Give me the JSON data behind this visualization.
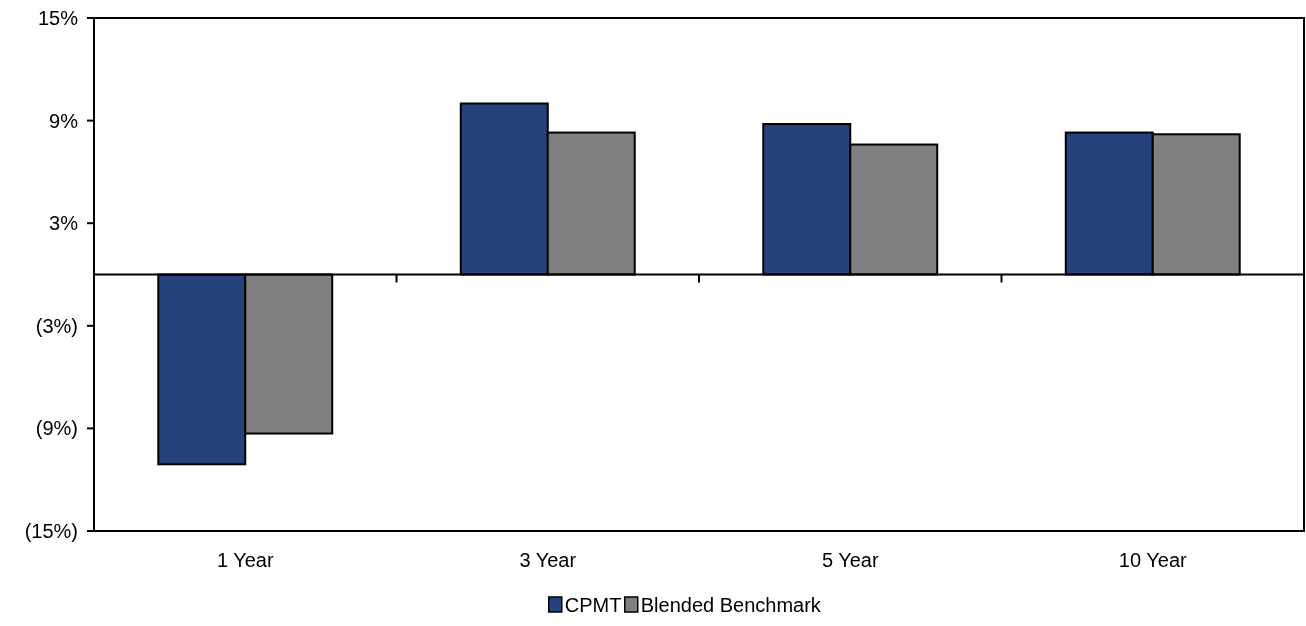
{
  "chart_data": {
    "type": "bar",
    "categories": [
      "1 Year",
      "3 Year",
      "5 Year",
      "10 Year"
    ],
    "series": [
      {
        "name": "CPMT",
        "color": "#24437c",
        "values": [
          -11.1,
          10.0,
          8.8,
          8.3
        ]
      },
      {
        "name": "Blended Benchmark",
        "color": "#808080",
        "values": [
          -9.3,
          8.3,
          7.6,
          8.2
        ]
      }
    ],
    "ylim": [
      -15,
      15
    ],
    "yticks": [
      {
        "value": -15,
        "label": "(15%)"
      },
      {
        "value": -9,
        "label": "(9%)"
      },
      {
        "value": -3,
        "label": "(3%)"
      },
      {
        "value": 3,
        "label": "3%"
      },
      {
        "value": 9,
        "label": "9%"
      },
      {
        "value": 15,
        "label": "15%"
      }
    ],
    "grid": false,
    "legend": "bottom"
  }
}
